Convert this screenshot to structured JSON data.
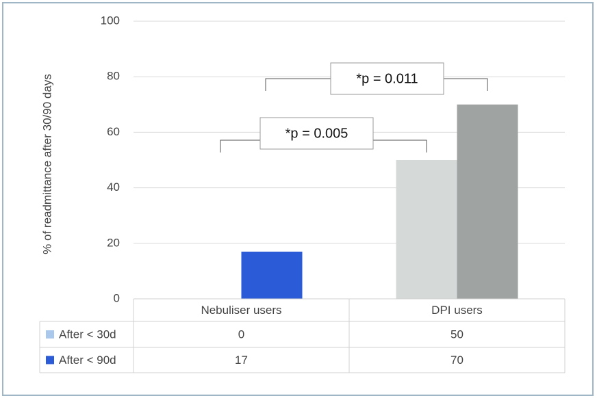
{
  "chart_data": {
    "type": "bar",
    "y_label": "% of readmittance after 30/90 days",
    "categories": [
      "Nebuliser users",
      "DPI users"
    ],
    "series": [
      {
        "name": "After < 30d",
        "color": "#a9c8eb",
        "bar_colors": [
          "#a9c8eb",
          "#d5dad9"
        ],
        "values": [
          0,
          50
        ]
      },
      {
        "name": "After < 90d",
        "color": "#2b5bd6",
        "bar_colors": [
          "#2b5bd6",
          "#9fa3a2"
        ],
        "values": [
          17,
          70
        ]
      }
    ],
    "annotations": [
      "*p = 0.005",
      "*p = 0.011"
    ],
    "ylim": [
      0,
      100
    ],
    "yticks": [
      0,
      20,
      40,
      60,
      80,
      100
    ],
    "grid": true
  }
}
